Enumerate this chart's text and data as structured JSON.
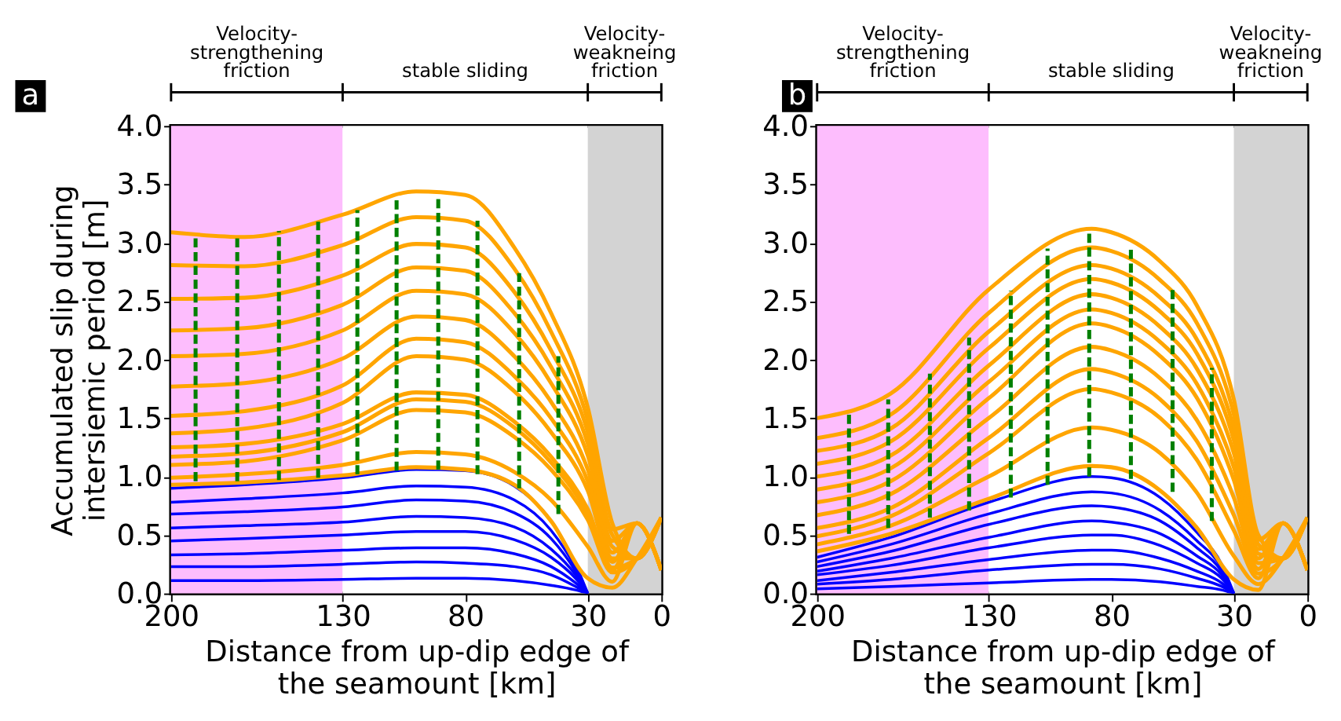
{
  "chart_data": [
    {
      "type": "line",
      "title": "a",
      "ylabel": "Accumulated slip during\nintersiemic period [m]",
      "xlabel": "Distance from up-dip edge of\nthe seamount [km]",
      "xlim": [
        200,
        0
      ],
      "xticks": [
        200,
        130,
        80,
        30,
        0
      ],
      "ylim": [
        0,
        4.0
      ],
      "yticks": [
        {
          "value": 0,
          "label": "0.0"
        },
        0.5,
        {
          "value": 1,
          "label": "1.0"
        },
        1.5,
        {
          "value": 2,
          "label": "2.0"
        },
        2.5,
        {
          "value": 3,
          "label": "3.0"
        },
        3.5,
        {
          "value": 4,
          "label": "4.0"
        }
      ],
      "grid": false,
      "marker": "none",
      "bands": [
        {
          "axis": "x",
          "from": 200,
          "to": 130,
          "label": "Velocity-\nstrengthening\nfriction",
          "color": "#fdbdfd"
        },
        {
          "axis": "x",
          "from": 130,
          "to": 30,
          "label": "stable sliding",
          "color": "#ffffff"
        },
        {
          "axis": "x",
          "from": 30,
          "to": 0,
          "label": "Velocity-\nweakneing\nfriction",
          "color": "#d3d3d3"
        }
      ],
      "series": [
        {
          "color": "#0000ff",
          "x": [
            200,
            170,
            130,
            100,
            80,
            60,
            45,
            35,
            30
          ],
          "values": [
            0.11,
            0.11,
            0.12,
            0.13,
            0.13,
            0.11,
            0.07,
            0.03,
            0
          ]
        },
        {
          "color": "#0000ff",
          "x": [
            200,
            170,
            130,
            100,
            80,
            60,
            45,
            35,
            30
          ],
          "values": [
            0.23,
            0.23,
            0.25,
            0.27,
            0.26,
            0.23,
            0.16,
            0.06,
            0
          ]
        },
        {
          "color": "#0000ff",
          "x": [
            200,
            170,
            130,
            100,
            80,
            60,
            45,
            35,
            30
          ],
          "values": [
            0.33,
            0.34,
            0.37,
            0.39,
            0.39,
            0.34,
            0.23,
            0.09,
            0
          ]
        },
        {
          "color": "#0000ff",
          "x": [
            200,
            170,
            130,
            100,
            80,
            60,
            45,
            35,
            30
          ],
          "values": [
            0.45,
            0.47,
            0.5,
            0.53,
            0.53,
            0.46,
            0.31,
            0.13,
            0
          ]
        },
        {
          "color": "#0000ff",
          "x": [
            200,
            170,
            130,
            100,
            80,
            60,
            45,
            35,
            30
          ],
          "values": [
            0.56,
            0.58,
            0.61,
            0.66,
            0.65,
            0.57,
            0.38,
            0.16,
            0
          ]
        },
        {
          "color": "#0000ff",
          "x": [
            200,
            170,
            130,
            100,
            80,
            60,
            45,
            35,
            30
          ],
          "values": [
            0.68,
            0.7,
            0.74,
            0.8,
            0.79,
            0.69,
            0.47,
            0.19,
            0
          ]
        },
        {
          "color": "#0000ff",
          "x": [
            200,
            170,
            130,
            100,
            80,
            60,
            45,
            35,
            30
          ],
          "values": [
            0.78,
            0.81,
            0.86,
            0.92,
            0.91,
            0.8,
            0.54,
            0.22,
            0
          ]
        },
        {
          "color": "#0000ff",
          "x": [
            200,
            170,
            130,
            100,
            80,
            60,
            45,
            35,
            30
          ],
          "values": [
            0.9,
            0.93,
            0.99,
            1.06,
            1.05,
            0.92,
            0.62,
            0.25,
            0
          ]
        },
        {
          "color": "#ffa500",
          "x": [
            200,
            170,
            130,
            100,
            80,
            60,
            45,
            30,
            20,
            10,
            0
          ],
          "values": [
            3.09,
            3.05,
            3.24,
            3.44,
            3.41,
            2.96,
            2.4,
            1.59,
            0.6,
            0.3,
            0.65
          ]
        },
        {
          "color": "#ffa500",
          "x": [
            200,
            170,
            130,
            100,
            80,
            60,
            45,
            30,
            20,
            10,
            0
          ],
          "values": [
            2.81,
            2.8,
            2.98,
            3.22,
            3.19,
            2.78,
            2.24,
            1.48,
            0.55,
            0.6,
            0.2
          ]
        },
        {
          "color": "#ffa500",
          "x": [
            200,
            170,
            130,
            100,
            80,
            60,
            45,
            30,
            20,
            10,
            0
          ],
          "values": [
            2.52,
            2.53,
            2.72,
            2.99,
            2.96,
            2.58,
            2.08,
            1.38,
            0.5,
            0.3,
            0.65
          ]
        },
        {
          "color": "#ffa500",
          "x": [
            200,
            170,
            130,
            100,
            80,
            60,
            45,
            30,
            20,
            10,
            0
          ],
          "values": [
            2.25,
            2.27,
            2.47,
            2.79,
            2.76,
            2.4,
            1.94,
            1.28,
            0.45,
            0.6,
            0.2
          ]
        },
        {
          "color": "#ffa500",
          "x": [
            200,
            170,
            130,
            100,
            80,
            60,
            45,
            30,
            20,
            10,
            0
          ],
          "values": [
            2.03,
            2.05,
            2.25,
            2.59,
            2.56,
            2.23,
            1.8,
            1.18,
            0.4,
            0.3,
            0.65
          ]
        },
        {
          "color": "#ffa500",
          "x": [
            200,
            170,
            130,
            100,
            80,
            60,
            45,
            30,
            20,
            10,
            0
          ],
          "values": [
            1.77,
            1.8,
            2.01,
            2.37,
            2.34,
            2.03,
            1.64,
            1.06,
            0.35,
            0.6,
            0.2
          ]
        },
        {
          "color": "#ffa500",
          "x": [
            200,
            170,
            130,
            100,
            80,
            60,
            45,
            30,
            20,
            10,
            0
          ],
          "values": [
            1.52,
            1.56,
            1.78,
            2.18,
            2.15,
            1.86,
            1.5,
            0.96,
            0.3,
            0.3,
            0.65
          ]
        },
        {
          "color": "#ffa500",
          "x": [
            200,
            170,
            130,
            100,
            80,
            60,
            45,
            30,
            20,
            10,
            0
          ],
          "values": [
            1.37,
            1.41,
            1.63,
            2.03,
            2.0,
            1.73,
            1.38,
            0.88,
            0.27,
            0.6,
            0.2
          ]
        },
        {
          "color": "#ffa500",
          "x": [
            200,
            170,
            130,
            100,
            80,
            60,
            45,
            30,
            20,
            10,
            0
          ],
          "values": [
            1.25,
            1.28,
            1.45,
            1.72,
            1.7,
            1.47,
            1.17,
            0.72,
            0.22,
            0.3,
            0.65
          ]
        },
        {
          "color": "#ffa500",
          "x": [
            200,
            170,
            130,
            100,
            80,
            60,
            45,
            30,
            20,
            10,
            0
          ],
          "values": [
            1.17,
            1.2,
            1.38,
            1.66,
            1.64,
            1.42,
            1.12,
            0.68,
            0.2,
            0.6,
            0.2
          ]
        },
        {
          "color": "#ffa500",
          "x": [
            200,
            170,
            130,
            100,
            80,
            60,
            45,
            30,
            20,
            10,
            0
          ],
          "values": [
            1.1,
            1.13,
            1.31,
            1.57,
            1.55,
            1.34,
            1.06,
            0.63,
            0.18,
            0.3,
            0.65
          ]
        },
        {
          "color": "#ffa500",
          "x": [
            200,
            170,
            130,
            100,
            80,
            60,
            45,
            30,
            20,
            10,
            0
          ],
          "values": [
            0.99,
            1.02,
            1.1,
            1.21,
            1.19,
            1.04,
            0.8,
            0.4,
            0.1,
            0.6,
            0.2
          ]
        },
        {
          "color": "#ffa500",
          "x": [
            200,
            170,
            130,
            100,
            80,
            60,
            45,
            30,
            20,
            10,
            0
          ],
          "values": [
            0.93,
            0.95,
            1.01,
            1.08,
            1.06,
            0.93,
            0.62,
            0.13,
            0.05,
            0.3,
            0.65
          ]
        },
        {
          "color": "#008000",
          "line_style": "dashed",
          "x": [
            190,
            190
          ],
          "values": [
            0.96,
            3.04
          ]
        },
        {
          "color": "#008000",
          "line_style": "dashed",
          "x": [
            173,
            173
          ],
          "values": [
            0.96,
            3.05
          ]
        },
        {
          "color": "#008000",
          "line_style": "dashed",
          "x": [
            156,
            156
          ],
          "values": [
            0.97,
            3.1
          ]
        },
        {
          "color": "#008000",
          "line_style": "dashed",
          "x": [
            140,
            140
          ],
          "values": [
            0.99,
            3.18
          ]
        },
        {
          "color": "#008000",
          "line_style": "dashed",
          "x": [
            124,
            124
          ],
          "values": [
            1.02,
            3.28
          ]
        },
        {
          "color": "#008000",
          "line_style": "dashed",
          "x": [
            108,
            108
          ],
          "values": [
            1.05,
            3.4
          ]
        },
        {
          "color": "#008000",
          "line_style": "dashed",
          "x": [
            91,
            91
          ],
          "values": [
            1.06,
            3.4
          ]
        },
        {
          "color": "#008000",
          "line_style": "dashed",
          "x": [
            75,
            75
          ],
          "values": [
            1.02,
            3.19
          ]
        },
        {
          "color": "#008000",
          "line_style": "dashed",
          "x": [
            58,
            58
          ],
          "values": [
            0.9,
            2.74
          ]
        },
        {
          "color": "#008000",
          "line_style": "dashed",
          "x": [
            42,
            42
          ],
          "values": [
            0.68,
            2.03
          ]
        }
      ]
    },
    {
      "type": "line",
      "title": "b",
      "xlabel": "Distance from up-dip edge of\nthe seamount [km]",
      "xlim": [
        200,
        0
      ],
      "xticks": [
        200,
        130,
        80,
        30,
        0
      ],
      "ylim": [
        0,
        4.0
      ],
      "yticks": [
        {
          "value": 0,
          "label": "0.0"
        },
        0.5,
        {
          "value": 1,
          "label": "1.0"
        },
        1.5,
        {
          "value": 2,
          "label": "2.0"
        },
        2.5,
        {
          "value": 3,
          "label": "3.0"
        },
        3.5,
        {
          "value": 4,
          "label": "4.0"
        }
      ],
      "grid": false,
      "marker": "none",
      "bands": [
        {
          "axis": "x",
          "from": 200,
          "to": 130,
          "label": "Velocity-\nstrengthening\nfriction",
          "color": "#fdbdfd"
        },
        {
          "axis": "x",
          "from": 130,
          "to": 30,
          "label": "stable sliding",
          "color": "#ffffff"
        },
        {
          "axis": "x",
          "from": 30,
          "to": 0,
          "label": "Velocity-\nweakneing\nfriction",
          "color": "#d3d3d3"
        }
      ],
      "series": [
        {
          "color": "#0000ff",
          "x": [
            200,
            170,
            130,
            88,
            80,
            60,
            45,
            35,
            30
          ],
          "values": [
            0.04,
            0.06,
            0.09,
            0.12,
            0.12,
            0.1,
            0.06,
            0.03,
            0
          ]
        },
        {
          "color": "#0000ff",
          "x": [
            200,
            170,
            130,
            88,
            80,
            60,
            45,
            35,
            30
          ],
          "values": [
            0.08,
            0.12,
            0.2,
            0.25,
            0.25,
            0.21,
            0.13,
            0.06,
            0
          ]
        },
        {
          "color": "#0000ff",
          "x": [
            200,
            170,
            130,
            88,
            80,
            60,
            45,
            35,
            30
          ],
          "values": [
            0.11,
            0.18,
            0.29,
            0.37,
            0.37,
            0.3,
            0.19,
            0.09,
            0
          ]
        },
        {
          "color": "#0000ff",
          "x": [
            200,
            170,
            130,
            88,
            80,
            60,
            45,
            35,
            30
          ],
          "values": [
            0.16,
            0.24,
            0.39,
            0.5,
            0.5,
            0.41,
            0.26,
            0.13,
            0
          ]
        },
        {
          "color": "#0000ff",
          "x": [
            200,
            170,
            130,
            88,
            80,
            60,
            45,
            35,
            30
          ],
          "values": [
            0.19,
            0.3,
            0.48,
            0.62,
            0.61,
            0.51,
            0.32,
            0.16,
            0
          ]
        },
        {
          "color": "#0000ff",
          "x": [
            200,
            170,
            130,
            88,
            80,
            60,
            45,
            35,
            30
          ],
          "values": [
            0.23,
            0.36,
            0.59,
            0.75,
            0.74,
            0.62,
            0.39,
            0.19,
            0
          ]
        },
        {
          "color": "#0000ff",
          "x": [
            200,
            170,
            130,
            88,
            80,
            60,
            45,
            35,
            30
          ],
          "values": [
            0.27,
            0.42,
            0.68,
            0.87,
            0.86,
            0.71,
            0.45,
            0.22,
            0
          ]
        },
        {
          "color": "#0000ff",
          "x": [
            200,
            170,
            130,
            88,
            80,
            60,
            45,
            35,
            30
          ],
          "values": [
            0.31,
            0.48,
            0.78,
            1.0,
            0.99,
            0.82,
            0.52,
            0.25,
            0
          ]
        },
        {
          "color": "#ffa500",
          "x": [
            200,
            170,
            130,
            88,
            80,
            60,
            45,
            30,
            20,
            10,
            0
          ],
          "values": [
            1.5,
            1.71,
            2.6,
            3.12,
            3.09,
            2.84,
            2.46,
            1.66,
            0.5,
            0.3,
            0.65
          ]
        },
        {
          "color": "#ffa500",
          "x": [
            200,
            170,
            130,
            88,
            80,
            60,
            45,
            30,
            20,
            10,
            0
          ],
          "values": [
            1.33,
            1.53,
            2.4,
            2.96,
            2.93,
            2.68,
            2.31,
            1.53,
            0.46,
            0.6,
            0.2
          ]
        },
        {
          "color": "#ffa500",
          "x": [
            200,
            170,
            130,
            88,
            80,
            60,
            45,
            30,
            20,
            10,
            0
          ],
          "values": [
            1.22,
            1.41,
            2.24,
            2.81,
            2.78,
            2.53,
            2.17,
            1.41,
            0.42,
            0.3,
            0.65
          ]
        },
        {
          "color": "#ffa500",
          "x": [
            200,
            170,
            130,
            88,
            80,
            60,
            45,
            30,
            20,
            10,
            0
          ],
          "values": [
            1.11,
            1.3,
            2.1,
            2.69,
            2.66,
            2.41,
            2.05,
            1.31,
            0.38,
            0.6,
            0.2
          ]
        },
        {
          "color": "#ffa500",
          "x": [
            200,
            170,
            130,
            88,
            80,
            60,
            45,
            30,
            20,
            10,
            0
          ],
          "values": [
            1.0,
            1.18,
            1.95,
            2.56,
            2.53,
            2.28,
            1.92,
            1.2,
            0.34,
            0.3,
            0.65
          ]
        },
        {
          "color": "#ffa500",
          "x": [
            200,
            170,
            130,
            88,
            80,
            60,
            45,
            30,
            20,
            10,
            0
          ],
          "values": [
            0.89,
            1.07,
            1.81,
            2.43,
            2.4,
            2.15,
            1.79,
            1.08,
            0.3,
            0.6,
            0.2
          ]
        },
        {
          "color": "#ffa500",
          "x": [
            200,
            170,
            130,
            88,
            80,
            60,
            45,
            30,
            20,
            10,
            0
          ],
          "values": [
            0.78,
            0.96,
            1.67,
            2.31,
            2.28,
            2.03,
            1.67,
            0.97,
            0.26,
            0.3,
            0.65
          ]
        },
        {
          "color": "#ffa500",
          "x": [
            200,
            170,
            130,
            88,
            80,
            60,
            45,
            30,
            20,
            10,
            0
          ],
          "values": [
            0.67,
            0.85,
            1.5,
            2.11,
            2.08,
            1.84,
            1.48,
            0.82,
            0.21,
            0.6,
            0.2
          ]
        },
        {
          "color": "#ffa500",
          "x": [
            200,
            170,
            130,
            88,
            80,
            60,
            45,
            30,
            20,
            10,
            0
          ],
          "values": [
            0.56,
            0.73,
            1.33,
            1.92,
            1.89,
            1.66,
            1.3,
            0.67,
            0.17,
            0.3,
            0.65
          ]
        },
        {
          "color": "#ffa500",
          "x": [
            200,
            170,
            130,
            88,
            80,
            60,
            45,
            30,
            20,
            10,
            0
          ],
          "values": [
            0.49,
            0.66,
            1.2,
            1.75,
            1.72,
            1.5,
            1.14,
            0.54,
            0.13,
            0.6,
            0.2
          ]
        },
        {
          "color": "#ffa500",
          "x": [
            200,
            170,
            130,
            88,
            80,
            60,
            45,
            30,
            20,
            10,
            0
          ],
          "values": [
            0.42,
            0.58,
            1.0,
            1.42,
            1.4,
            1.2,
            0.86,
            0.32,
            0.08,
            0.3,
            0.65
          ]
        },
        {
          "color": "#ffa500",
          "x": [
            200,
            170,
            130,
            88,
            80,
            60,
            45,
            30,
            20,
            10,
            0
          ],
          "values": [
            0.36,
            0.51,
            0.81,
            1.09,
            1.08,
            0.88,
            0.56,
            0.12,
            0.03,
            0.6,
            0.2
          ]
        },
        {
          "color": "#008000",
          "line_style": "dashed",
          "x": [
            187,
            187
          ],
          "values": [
            0.51,
            1.53
          ]
        },
        {
          "color": "#008000",
          "line_style": "dashed",
          "x": [
            171,
            171
          ],
          "values": [
            0.56,
            1.66
          ]
        },
        {
          "color": "#008000",
          "line_style": "dashed",
          "x": [
            154,
            154
          ],
          "values": [
            0.65,
            1.88
          ]
        },
        {
          "color": "#008000",
          "line_style": "dashed",
          "x": [
            138,
            138
          ],
          "values": [
            0.71,
            2.19
          ]
        },
        {
          "color": "#008000",
          "line_style": "dashed",
          "x": [
            121,
            121
          ],
          "values": [
            0.82,
            2.59
          ]
        },
        {
          "color": "#008000",
          "line_style": "dashed",
          "x": [
            106,
            106
          ],
          "values": [
            0.93,
            2.95
          ]
        },
        {
          "color": "#008000",
          "line_style": "dashed",
          "x": [
            89,
            89
          ],
          "values": [
            1.0,
            3.09
          ]
        },
        {
          "color": "#008000",
          "line_style": "dashed",
          "x": [
            72,
            72
          ],
          "values": [
            0.98,
            2.98
          ]
        },
        {
          "color": "#008000",
          "line_style": "dashed",
          "x": [
            55,
            55
          ],
          "values": [
            0.87,
            2.62
          ]
        },
        {
          "color": "#008000",
          "line_style": "dashed",
          "x": [
            39,
            39
          ],
          "values": [
            0.62,
            1.93
          ]
        }
      ]
    }
  ]
}
